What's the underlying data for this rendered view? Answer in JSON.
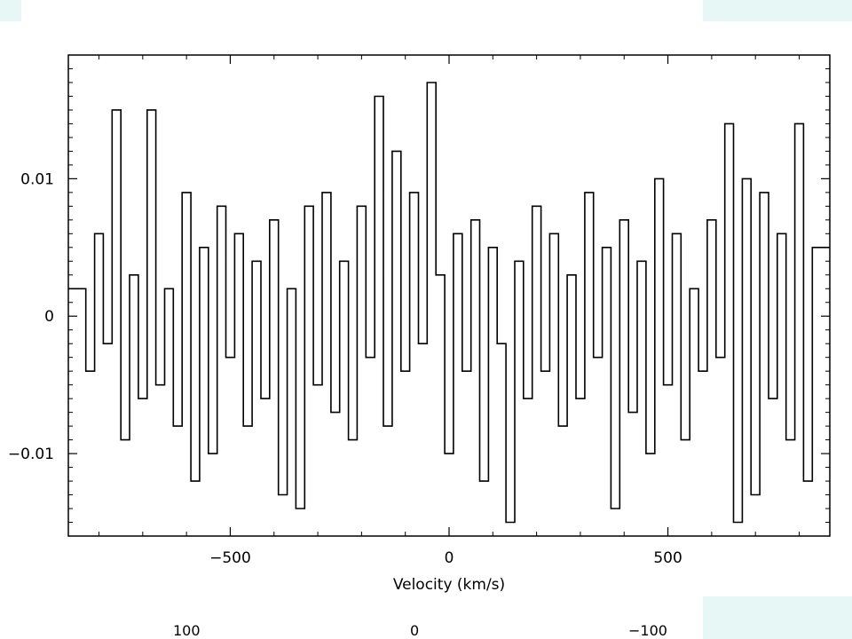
{
  "colors": {
    "background": "#ffffff",
    "accent_panel": "#e6f7f6",
    "line": "#000000"
  },
  "chart_data": {
    "type": "line",
    "step": true,
    "title": "",
    "xlabel": "Velocity (km/s)",
    "ylabel": "",
    "xlim": [
      -870,
      870
    ],
    "ylim": [
      -0.016,
      0.019
    ],
    "xticks": [
      -500,
      0,
      500
    ],
    "xtick_labels": [
      "−500",
      "0",
      "500"
    ],
    "yticks": [
      0.01,
      0,
      -0.01
    ],
    "ytick_labels": [
      "0.01",
      "0",
      "−0.01"
    ],
    "grid": false,
    "legend": "none",
    "series": [
      {
        "x": [
          -840,
          -820,
          -800,
          -780,
          -760,
          -740,
          -720,
          -700,
          -680,
          -660,
          -640,
          -620,
          -600,
          -580,
          -560,
          -540,
          -520,
          -500,
          -480,
          -460,
          -440,
          -420,
          -400,
          -380,
          -360,
          -340,
          -320,
          -300,
          -280,
          -260,
          -240,
          -220,
          -200,
          -180,
          -160,
          -140,
          -120,
          -100,
          -80,
          -60,
          -40,
          -20,
          0,
          20,
          40,
          60,
          80,
          100,
          120,
          140,
          160,
          180,
          200,
          220,
          240,
          260,
          280,
          300,
          320,
          340,
          360,
          380,
          400,
          420,
          440,
          460,
          480,
          500,
          520,
          540,
          560,
          580,
          600,
          620,
          640,
          660,
          680,
          700,
          720,
          740,
          760,
          780,
          800,
          820,
          840
        ],
        "y": [
          0.002,
          -0.004,
          0.006,
          -0.002,
          0.015,
          -0.009,
          0.003,
          -0.006,
          0.015,
          -0.005,
          0.002,
          -0.008,
          0.009,
          -0.012,
          0.005,
          -0.01,
          0.008,
          -0.003,
          0.006,
          -0.008,
          0.004,
          -0.006,
          0.007,
          -0.013,
          0.002,
          -0.014,
          0.008,
          -0.005,
          0.009,
          -0.007,
          0.004,
          -0.009,
          0.008,
          -0.003,
          0.016,
          -0.008,
          0.012,
          -0.004,
          0.009,
          -0.002,
          0.017,
          0.003,
          -0.01,
          0.006,
          -0.004,
          0.007,
          -0.012,
          0.005,
          -0.002,
          -0.015,
          0.004,
          -0.006,
          0.008,
          -0.004,
          0.006,
          -0.008,
          0.003,
          -0.006,
          0.009,
          -0.003,
          0.005,
          -0.014,
          0.007,
          -0.007,
          0.004,
          -0.01,
          0.01,
          -0.005,
          0.006,
          -0.009,
          0.002,
          -0.004,
          0.007,
          -0.003,
          0.014,
          -0.015,
          0.01,
          -0.013,
          0.009,
          -0.006,
          0.006,
          -0.009,
          0.014,
          -0.012,
          0.005
        ]
      }
    ]
  },
  "cutoff_labels": [
    "100",
    "0",
    "−100"
  ]
}
